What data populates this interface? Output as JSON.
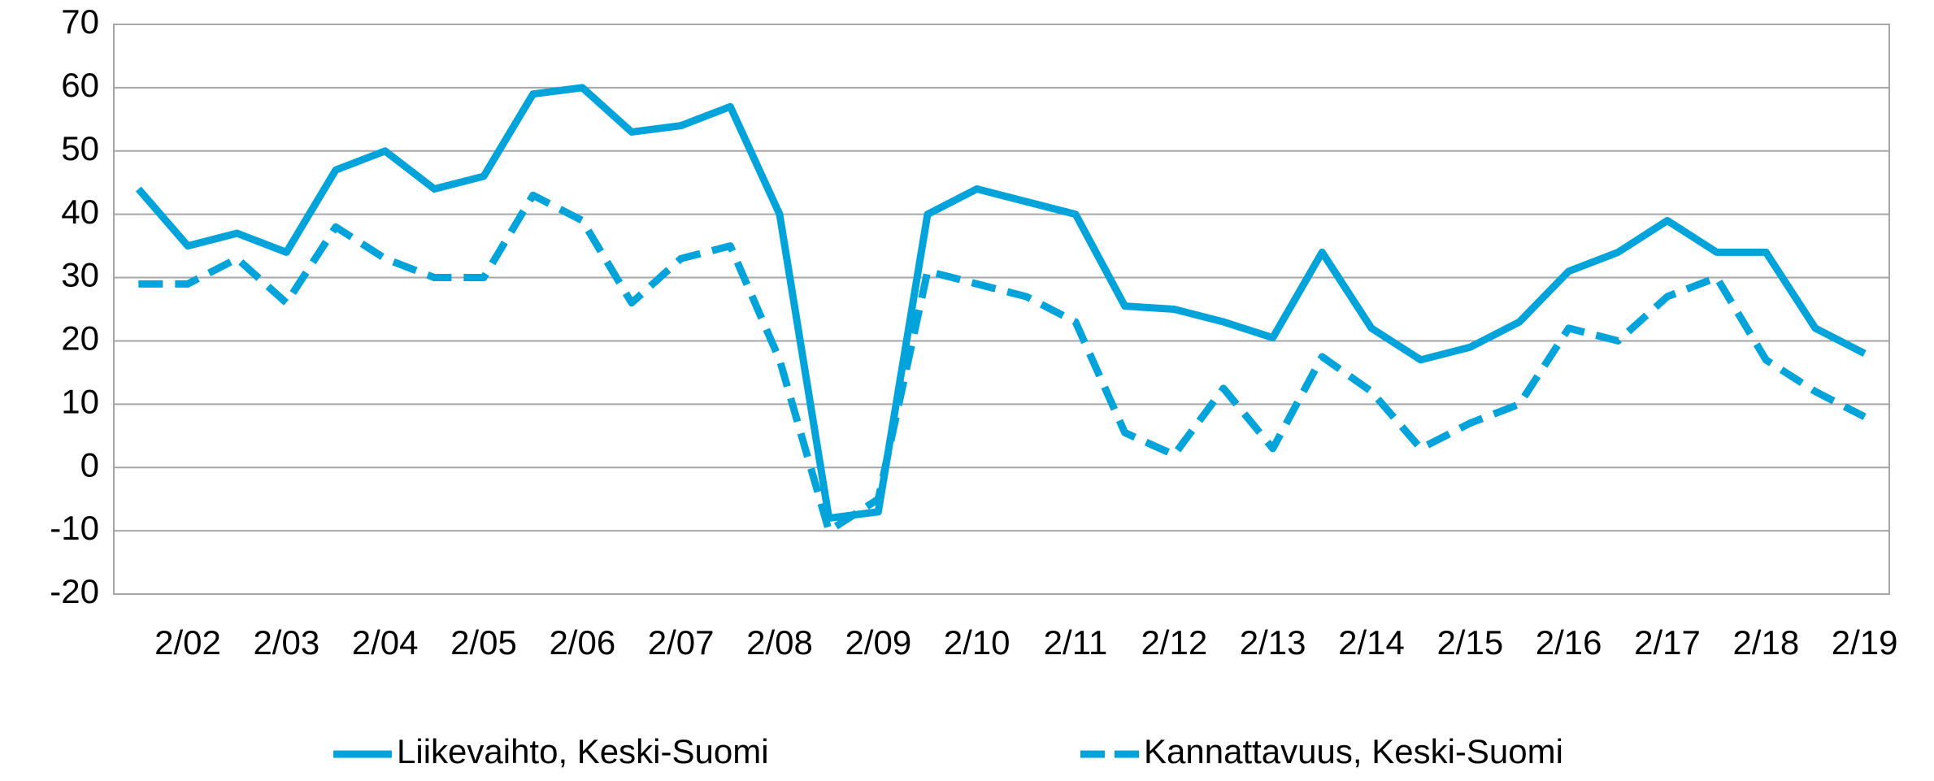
{
  "chart_data": {
    "type": "line",
    "categories": [
      null,
      "2/02",
      null,
      "2/03",
      null,
      "2/04",
      null,
      "2/05",
      null,
      "2/06",
      null,
      "2/07",
      null,
      "2/08",
      null,
      "2/09",
      null,
      "2/10",
      null,
      "2/11",
      null,
      "2/12",
      null,
      "2/13",
      null,
      "2/14",
      null,
      "2/15",
      null,
      "2/16",
      null,
      "2/17",
      null,
      "2/18",
      null,
      "2/19"
    ],
    "series": [
      {
        "name": "Liikevaihto, Keski-Suomi",
        "color": "#00a3da",
        "dash": false,
        "values": [
          44,
          35,
          37,
          34,
          47,
          50,
          44,
          46,
          59,
          60,
          53,
          54,
          57,
          40,
          -8,
          -7,
          40,
          44,
          42,
          40,
          25.5,
          25,
          23,
          20.5,
          34,
          22,
          17,
          19,
          23,
          31,
          34,
          39,
          34,
          34,
          22,
          18
        ]
      },
      {
        "name": "Kannattavuus, Keski-Suomi",
        "color": "#00a3da",
        "dash": true,
        "values": [
          29,
          29,
          33,
          26,
          38,
          33,
          30,
          30,
          43,
          39,
          26,
          33,
          35,
          17,
          -10,
          -5,
          31,
          29,
          27,
          23,
          5.5,
          2,
          12.5,
          3,
          17.5,
          12,
          3,
          7,
          10,
          22,
          20,
          27,
          30,
          17,
          12,
          8
        ]
      }
    ],
    "ylim": [
      -20,
      70
    ],
    "yticks": [
      -20,
      -10,
      0,
      10,
      20,
      30,
      40,
      50,
      60,
      70
    ],
    "grid": true,
    "legend": "bottom"
  }
}
